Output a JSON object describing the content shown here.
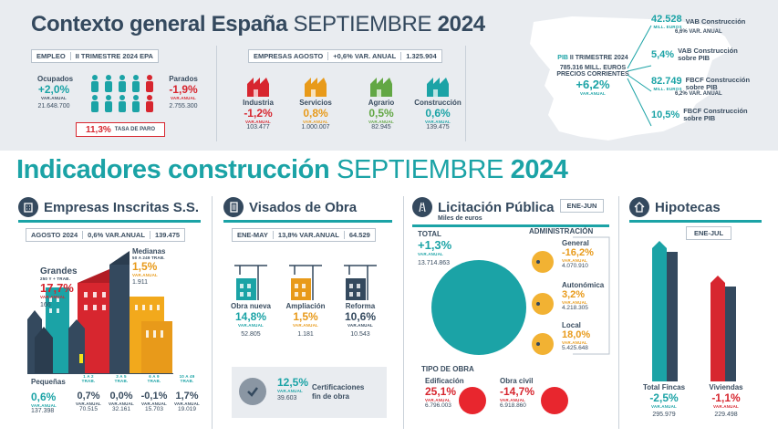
{
  "header": {
    "title_bold": "Contexto general España",
    "title_month": "SEPTIEMBRE",
    "title_year": "2024"
  },
  "empleo": {
    "box": [
      "EMPLEO",
      "II TRIMESTRE 2024 EPA"
    ],
    "ocupados": {
      "label": "Ocupados",
      "value": "+2,0%",
      "sub": "VAR.ANUAL",
      "num": "21.648.700"
    },
    "parados": {
      "label": "Parados",
      "value": "-1,9%",
      "sub": "VAR.ANUAL",
      "num": "2.755.300"
    },
    "tasa": {
      "value": "11,3%",
      "label": "TASA DE PARO"
    }
  },
  "empresas": {
    "box": [
      "EMPRESAS AGOSTO",
      "+0,6% VAR. ANUAL",
      "1.325.904"
    ],
    "items": [
      {
        "label": "Industria",
        "value": "-1,2%",
        "sub": "VAR.ANUAL",
        "num": "103.477",
        "color": "#d7262f",
        "icon": "factory-icon"
      },
      {
        "label": "Servicios",
        "value": "0,8%",
        "sub": "VAR.ANUAL",
        "num": "1.000.007",
        "color": "#e89a1a",
        "icon": "shop-icon"
      },
      {
        "label": "Agrario",
        "value": "0,5%",
        "sub": "VAR.ANUAL",
        "num": "82.945",
        "color": "#62a744",
        "icon": "plant-icon"
      },
      {
        "label": "Construcción",
        "value": "0,6%",
        "sub": "VAR.ANUAL",
        "num": "139.475",
        "color": "#1ba3a6",
        "icon": "crane-icon"
      }
    ]
  },
  "pib": {
    "label_bold": "PIB",
    "label": "II TRIMESTRE 2024",
    "sub1": "785.316 MILL. EUROS",
    "sub2": "PRECIOS CORRIENTES",
    "value": "+6,2%",
    "var": "VAR.ANUAL",
    "right": [
      {
        "value": "42.528",
        "unit": "MILL. EUROS",
        "label": "VAB Construcción",
        "foot": "6,6% VAR. ANUAL"
      },
      {
        "value": "5,4%",
        "unit": "",
        "label": "VAB Construcción sobre PIB",
        "foot": ""
      },
      {
        "value": "82.749",
        "unit": "MILL. EUROS",
        "label": "FBCF Construcción sobre PIB",
        "foot": "6,2% VAR. ANUAL"
      },
      {
        "value": "10,5%",
        "unit": "",
        "label": "FBCF Construcción sobre PIB",
        "foot": ""
      }
    ]
  },
  "indicadores": {
    "title_bold": "Indicadores construcción",
    "title_month": "SEPTIEMBRE",
    "title_year": "2024"
  },
  "inscritas": {
    "title": "Empresas Inscritas S.S.",
    "box": [
      "AGOSTO 2024",
      "0,6% VAR.ANUAL",
      "139.475"
    ],
    "grandes": {
      "label": "Grandes",
      "sub": "250 Y + TRAB.",
      "value": "17,7%",
      "var": "VAR.ANUAL",
      "num": "166"
    },
    "medianas": {
      "label": "Medianas",
      "sub": "50 A 249 TRAB.",
      "value": "1,5%",
      "var": "VAR.ANUAL",
      "num": "1.911"
    },
    "pequenas": {
      "label": "Pequeñas",
      "value": "0,6%",
      "var": "VAR.ANUAL",
      "num": "137.398"
    },
    "cols": [
      {
        "head1": "1 A 2",
        "head2": "TRAB.",
        "value": "0,7%",
        "var": "VAR.ANUAL",
        "num": "70.515"
      },
      {
        "head1": "3 A 5",
        "head2": "TRAB.",
        "value": "0,0%",
        "var": "VAR.ANUAL",
        "num": "32.161"
      },
      {
        "head1": "6 A 9",
        "head2": "TRAB.",
        "value": "-0,1%",
        "var": "VAR.ANUAL",
        "num": "15.703"
      },
      {
        "head1": "10 A 49",
        "head2": "TRAB.",
        "value": "1,7%",
        "var": "VAR.ANUAL",
        "num": "19.019"
      }
    ]
  },
  "visados": {
    "title": "Visados de Obra",
    "box": [
      "ENE-MAY",
      "13,8% VAR.ANUAL",
      "64.529"
    ],
    "items": [
      {
        "label": "Obra nueva",
        "value": "14,8%",
        "var": "VAR.ANUAL",
        "num": "52.805",
        "color": "#1ba3a6"
      },
      {
        "label": "Ampliación",
        "value": "1,5%",
        "var": "VAR.ANUAL",
        "num": "1.181",
        "color": "#e89a1a"
      },
      {
        "label": "Reforma",
        "value": "10,6%",
        "var": "VAR.ANUAL",
        "num": "10.543",
        "color": "#34495e"
      }
    ],
    "cert": {
      "value": "12,5%",
      "var": "VAR.ANUAL",
      "num": "39.603",
      "label1": "Certificaciones",
      "label2": "fin de obra"
    }
  },
  "licitacion": {
    "title": "Licitación Pública",
    "period": "ENE-JUN",
    "units": "Miles de euros",
    "total": {
      "label": "TOTAL",
      "value": "+1,3%",
      "var": "VAR.ANUAL",
      "num": "13.714.863"
    },
    "admin_title": "ADMINISTRACIÓN",
    "admin": [
      {
        "label": "General",
        "value": "-16,2%",
        "var": "VAR.ANUAL",
        "num": "4.070.910"
      },
      {
        "label": "Autonómica",
        "value": "3,2%",
        "var": "VAR.ANUAL",
        "num": "4.218.305"
      },
      {
        "label": "Local",
        "value": "18,0%",
        "var": "VAR.ANUAL",
        "num": "5.425.648"
      }
    ],
    "tipo_title": "TIPO DE OBRA",
    "tipo": [
      {
        "label": "Edificación",
        "value": "25,1%",
        "var": "VAR.ANUAL",
        "num": "6.796.003"
      },
      {
        "label": "Obra civil",
        "value": "-14,7%",
        "var": "VAR.ANUAL",
        "num": "6.918.860"
      }
    ]
  },
  "hipotecas": {
    "title": "Hipotecas",
    "period": "ENE-JUL",
    "items": [
      {
        "label": "Total Fincas",
        "value": "-2,5%",
        "var": "VAR.ANUAL",
        "num": "295.979"
      },
      {
        "label": "Viviendas",
        "value": "-1,1%",
        "var": "VAR.ANUAL",
        "num": "229.498"
      }
    ]
  }
}
